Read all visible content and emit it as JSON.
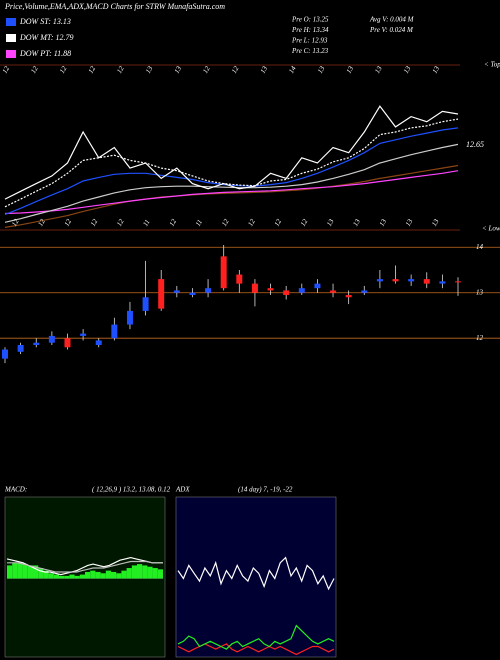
{
  "title": "Price,Volume,EMA,ADX,MACD Charts for STRW MunafaSutra.com",
  "legend": [
    {
      "label": "DOW ST: 13.13",
      "color": "#1e50ff"
    },
    {
      "label": "DOW MT: 12.79",
      "color": "#ffffff"
    },
    {
      "label": "DOW PT: 11.88",
      "color": "#ff44ff"
    }
  ],
  "stats": [
    "Pre  O: 13.25",
    "Pre  H: 13.34",
    "Pre  L: 12.93",
    "Pre  C: 13.23",
    "Avg V: 0.004  M",
    "Pre  V: 0.024  M"
  ],
  "chart_data": [
    {
      "type": "line",
      "top_labels": [
        "12",
        "12",
        "12",
        "12",
        "12",
        "13",
        "13",
        "12",
        "12",
        "13",
        "14",
        "13",
        "13",
        "13",
        "13",
        "13"
      ],
      "top_note": "< Tops",
      "bottom_labels": [
        "12",
        "12",
        "12",
        "12",
        "12",
        "11",
        "12",
        "11",
        "12",
        "12",
        "12",
        "12",
        "13",
        "13",
        "13",
        "13",
        "13"
      ],
      "bottom_note": "< Lows",
      "annotations": [
        12.65
      ],
      "ylim": [
        11.0,
        14.2
      ],
      "series": [
        {
          "color": "#8b4513",
          "values": [
            11.05,
            11.1,
            11.16,
            11.22,
            11.28,
            11.36,
            11.43,
            11.5,
            11.56,
            11.6,
            11.64,
            11.66,
            11.68,
            11.7,
            11.71,
            11.72,
            11.73,
            11.74,
            11.76,
            11.78,
            11.81,
            11.85,
            11.89,
            11.94,
            12.0,
            12.05,
            12.1,
            12.15,
            12.2,
            12.25
          ]
        },
        {
          "color": "#ff44ff",
          "values": [
            11.32,
            11.33,
            11.35,
            11.37,
            11.4,
            11.44,
            11.48,
            11.52,
            11.56,
            11.6,
            11.63,
            11.66,
            11.69,
            11.71,
            11.73,
            11.74,
            11.75,
            11.76,
            11.78,
            11.8,
            11.82,
            11.84,
            11.87,
            11.9,
            11.94,
            11.98,
            12.02,
            12.06,
            12.1,
            12.15
          ]
        },
        {
          "color": "#cccccc",
          "values": [
            11.15,
            11.22,
            11.3,
            11.38,
            11.46,
            11.56,
            11.64,
            11.72,
            11.78,
            11.82,
            11.84,
            11.85,
            11.85,
            11.84,
            11.83,
            11.82,
            11.82,
            11.83,
            11.85,
            11.88,
            11.93,
            12.0,
            12.08,
            12.17,
            12.3,
            12.38,
            12.46,
            12.53,
            12.6,
            12.66
          ]
        },
        {
          "color": "#1e50ff",
          "values": [
            11.3,
            11.42,
            11.55,
            11.68,
            11.8,
            11.95,
            12.02,
            12.08,
            12.1,
            12.1,
            12.06,
            12.02,
            11.98,
            11.92,
            11.88,
            11.86,
            11.85,
            11.88,
            11.92,
            12.0,
            12.1,
            12.22,
            12.35,
            12.5,
            12.68,
            12.75,
            12.82,
            12.88,
            12.94,
            12.98
          ]
        },
        {
          "color": "#ffffff",
          "dashed": true,
          "values": [
            11.45,
            11.6,
            11.75,
            11.9,
            12.1,
            12.35,
            12.4,
            12.45,
            12.35,
            12.3,
            12.2,
            12.15,
            12.05,
            11.95,
            11.9,
            11.87,
            11.86,
            11.95,
            11.98,
            12.1,
            12.18,
            12.32,
            12.4,
            12.58,
            12.85,
            12.9,
            12.98,
            13.02,
            13.1,
            13.15
          ]
        },
        {
          "color": "#ffffff",
          "values": [
            11.6,
            11.75,
            11.9,
            12.05,
            12.3,
            12.9,
            12.4,
            12.6,
            12.2,
            12.3,
            12.0,
            12.2,
            11.9,
            11.8,
            11.9,
            11.8,
            11.85,
            12.1,
            12.0,
            12.4,
            12.3,
            12.6,
            12.5,
            12.9,
            13.4,
            13.0,
            13.2,
            13.1,
            13.3,
            13.25
          ]
        }
      ]
    },
    {
      "type": "candlestick",
      "ylim": [
        11.3,
        14.05
      ],
      "yticks": [
        12,
        13,
        14
      ],
      "up_color": "#1e50ff",
      "down_color": "#ff2020",
      "open": [
        11.55,
        11.7,
        11.85,
        11.9,
        12.0,
        12.05,
        11.85,
        12.0,
        12.3,
        12.6,
        13.3,
        13.0,
        12.95,
        13.0,
        13.8,
        13.4,
        13.2,
        13.1,
        13.05,
        13.0,
        13.1,
        13.05,
        12.95,
        13.0,
        13.25,
        13.3,
        13.25,
        13.3,
        13.2,
        13.25
      ],
      "high": [
        11.8,
        11.9,
        12.0,
        12.15,
        12.1,
        12.2,
        12.0,
        12.45,
        12.8,
        13.7,
        13.5,
        13.15,
        13.1,
        13.3,
        14.05,
        13.5,
        13.3,
        13.2,
        13.15,
        13.2,
        13.3,
        13.2,
        13.05,
        13.15,
        13.5,
        13.6,
        13.4,
        13.45,
        13.4,
        13.34
      ],
      "low": [
        11.45,
        11.65,
        11.8,
        11.85,
        11.75,
        11.95,
        11.8,
        11.95,
        12.2,
        12.5,
        12.6,
        12.9,
        12.9,
        12.9,
        13.05,
        13.0,
        12.7,
        12.95,
        12.85,
        12.95,
        13.0,
        12.9,
        12.75,
        12.95,
        13.1,
        13.2,
        13.15,
        13.1,
        13.1,
        12.93
      ],
      "close": [
        11.75,
        11.85,
        11.9,
        12.05,
        11.8,
        12.1,
        11.95,
        12.3,
        12.6,
        12.9,
        12.65,
        13.05,
        13.0,
        13.1,
        13.1,
        13.2,
        13.0,
        13.05,
        12.95,
        13.1,
        13.2,
        13.0,
        12.9,
        13.05,
        13.3,
        13.25,
        13.3,
        13.2,
        13.25,
        13.23
      ]
    },
    {
      "type": "macd",
      "title": "MACD:",
      "subtitle": "( 12,26,9 ) 13.2, 13.08, 0.12",
      "ylim": [
        -0.6,
        0.6
      ],
      "histogram": [
        0.1,
        0.12,
        0.12,
        0.11,
        0.1,
        0.1,
        0.08,
        0.06,
        0.04,
        0.03,
        0.02,
        0.02,
        0.03,
        0.02,
        0.03,
        0.05,
        0.06,
        0.05,
        0.04,
        0.06,
        0.05,
        0.04,
        0.06,
        0.08,
        0.1,
        0.11,
        0.1,
        0.09,
        0.08,
        0.07
      ],
      "series": [
        {
          "color": "#ffffff",
          "values": [
            0.15,
            0.14,
            0.13,
            0.12,
            0.1,
            0.08,
            0.06,
            0.05,
            0.05,
            0.04,
            0.03,
            0.04,
            0.05,
            0.06,
            0.08,
            0.1,
            0.11,
            0.1,
            0.09,
            0.1,
            0.12,
            0.14,
            0.15,
            0.16,
            0.15,
            0.14,
            0.13,
            0.12,
            0.12,
            0.12
          ]
        },
        {
          "color": "#bbbbbb",
          "values": [
            0.12,
            0.12,
            0.12,
            0.11,
            0.1,
            0.09,
            0.08,
            0.07,
            0.06,
            0.05,
            0.05,
            0.05,
            0.05,
            0.05,
            0.06,
            0.07,
            0.08,
            0.08,
            0.08,
            0.09,
            0.1,
            0.11,
            0.12,
            0.13,
            0.13,
            0.13,
            0.13,
            0.12,
            0.12,
            0.12
          ]
        }
      ]
    },
    {
      "type": "adx",
      "title": "ADX",
      "subtitle": "(14 day) 7, -19, -22",
      "ylim": [
        0,
        60
      ],
      "series": [
        {
          "color": "#ffffff",
          "values": [
            33,
            30,
            35,
            32,
            29,
            34,
            31,
            36,
            28,
            33,
            30,
            35,
            31,
            29,
            34,
            32,
            27,
            33,
            30,
            36,
            38,
            31,
            34,
            29,
            35,
            33,
            28,
            31,
            26,
            30
          ]
        },
        {
          "color": "#ff2020",
          "values": [
            4,
            3,
            2,
            3,
            4,
            5,
            4,
            3,
            4,
            5,
            3,
            2,
            3,
            4,
            3,
            2,
            3,
            4,
            3,
            4,
            3,
            2,
            1,
            2,
            3,
            4,
            4,
            3,
            2,
            3
          ]
        },
        {
          "color": "#22ee22",
          "values": [
            5,
            6,
            8,
            7,
            4,
            5,
            6,
            5,
            4,
            3,
            5,
            6,
            4,
            5,
            6,
            7,
            5,
            4,
            6,
            5,
            6,
            7,
            12,
            10,
            8,
            6,
            5,
            6,
            7,
            6
          ]
        }
      ]
    }
  ]
}
